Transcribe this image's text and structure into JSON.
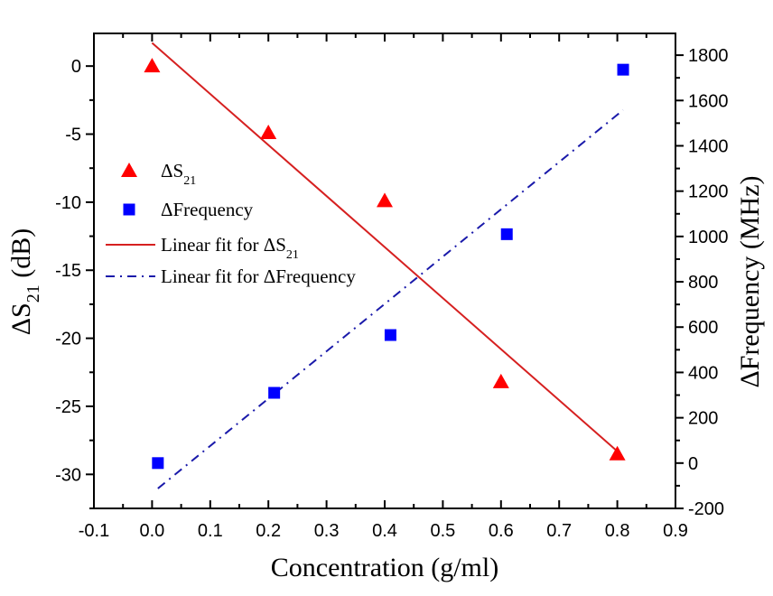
{
  "chart_data": {
    "type": "scatter",
    "title": "",
    "xlabel": "Concentration (g/ml)",
    "ylabel_left": {
      "prefix": "ΔS",
      "sub": "21",
      "suffix": " (dB)"
    },
    "ylabel_right": "ΔFrequency (MHz)",
    "xlim": [
      -0.1,
      0.9
    ],
    "ylim_left": [
      -32.5,
      2.4
    ],
    "ylim_right": [
      -200,
      1896
    ],
    "x_ticks": [
      "-0.1",
      "0.0",
      "0.1",
      "0.2",
      "0.3",
      "0.4",
      "0.5",
      "0.6",
      "0.7",
      "0.8",
      "0.9"
    ],
    "x_tick_values": [
      -0.1,
      0.0,
      0.1,
      0.2,
      0.3,
      0.4,
      0.5,
      0.6,
      0.7,
      0.8,
      0.9
    ],
    "y_left_ticks": [
      "0",
      "-5",
      "-10",
      "-15",
      "-20",
      "-25",
      "-30"
    ],
    "y_left_tick_values": [
      0,
      -5,
      -10,
      -15,
      -20,
      -25,
      -30
    ],
    "y_right_ticks": [
      "1800",
      "1600",
      "1400",
      "1200",
      "1000",
      "800",
      "600",
      "400",
      "200",
      "0",
      "-200"
    ],
    "y_right_tick_values": [
      1800,
      1600,
      1400,
      1200,
      1000,
      800,
      600,
      400,
      200,
      0,
      -200
    ],
    "grid": false,
    "legend_position": "upper-left",
    "series": [
      {
        "name": "ΔS21",
        "legend_label": {
          "prefix": "ΔS",
          "sub": "21"
        },
        "axis": "left",
        "marker": "triangle",
        "color": "#ff0000",
        "x": [
          0.0,
          0.2,
          0.4,
          0.6,
          0.8
        ],
        "y": [
          0.0,
          -4.9,
          -9.9,
          -23.2,
          -28.5
        ]
      },
      {
        "name": "ΔFrequency",
        "legend_label": {
          "prefix": "ΔFrequency",
          "sub": ""
        },
        "axis": "right",
        "marker": "square",
        "color": "#0000ff",
        "x": [
          0.01,
          0.21,
          0.41,
          0.61,
          0.81
        ],
        "y": [
          0,
          310,
          565,
          1010,
          1736
        ]
      },
      {
        "name": "Linear fit for ΔS21",
        "legend_label": {
          "prefix": "Linear fit for ΔS",
          "sub": "21"
        },
        "axis": "left",
        "line_style": "solid",
        "color": "#d62020",
        "x": [
          0.0,
          0.8
        ],
        "y": [
          1.7,
          -28.3
        ]
      },
      {
        "name": "Linear fit for ΔFrequency",
        "legend_label": {
          "prefix": "Linear fit for ΔFrequency",
          "sub": ""
        },
        "axis": "right",
        "line_style": "dash-dot",
        "color": "#1a1aaa",
        "x": [
          0.01,
          0.81
        ],
        "y": [
          -112,
          1558
        ]
      }
    ]
  }
}
